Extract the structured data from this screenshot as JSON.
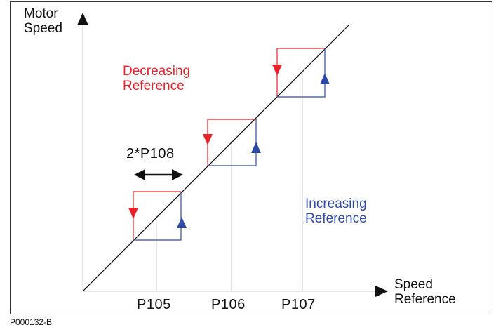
{
  "diagram": {
    "y_axis_label": [
      "Motor",
      "Speed"
    ],
    "x_axis_label": [
      "Speed",
      "Reference"
    ],
    "decreasing_label": [
      "Decreasing",
      "Reference"
    ],
    "increasing_label": [
      "Increasing",
      "Reference"
    ],
    "hysteresis_label": "2*P108",
    "tick_labels": [
      "P105",
      "P106",
      "P107"
    ],
    "figure_code": "P000132-B"
  },
  "colors": {
    "decreasing": "#e8222a",
    "increasing": "#2e4aa8",
    "axis": "#111111",
    "guide": "#c8c8c8"
  }
}
